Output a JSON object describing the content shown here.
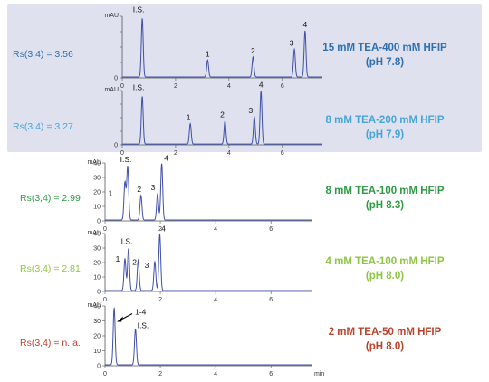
{
  "colors": {
    "panel_bg": "#dfe2ee",
    "trace": "#3f4fa8",
    "axis": "#555555",
    "cond_1": "#2f6fae",
    "cond_2": "#47a4d6",
    "cond_3": "#2f9a45",
    "cond_4": "#8fc544",
    "cond_5": "#b8432c"
  },
  "chart_data": [
    {
      "type": "line",
      "ylabel": "mAU",
      "ylim": [
        0,
        40
      ],
      "xlim": [
        0,
        7.5
      ],
      "x_ticks": [
        "0",
        "2",
        "4",
        "6"
      ],
      "y_ticks": [
        "0",
        "10",
        "20",
        "30",
        "40"
      ],
      "rs_label": "Rs(3,4) = 3.56",
      "condition": "15 mM TEA-400 mM HFIP",
      "ph": "(pH 7.8)",
      "color_key": "cond_1",
      "peaks": [
        {
          "label": "I.S.",
          "rt": 0.75,
          "height": 38
        },
        {
          "label": "1",
          "rt": 3.2,
          "height": 11
        },
        {
          "label": "2",
          "rt": 4.9,
          "height": 13
        },
        {
          "label": "3",
          "rt": 6.45,
          "height": 18
        },
        {
          "label": "4",
          "rt": 6.85,
          "height": 30
        }
      ]
    },
    {
      "type": "line",
      "ylabel": "mAU",
      "ylim": [
        0,
        40
      ],
      "xlim": [
        0,
        7.5
      ],
      "x_ticks": [
        "0",
        "2",
        "4",
        "6"
      ],
      "y_ticks": [
        "0",
        "10",
        "20",
        "30",
        "40"
      ],
      "rs_label": "Rs(3,4) = 3.27",
      "condition": "8 mM TEA-200 mM HFIP",
      "ph": "(pH 7.9)",
      "color_key": "cond_2",
      "peaks": [
        {
          "label": "I.S.",
          "rt": 0.75,
          "height": 35
        },
        {
          "label": "1",
          "rt": 2.55,
          "height": 15
        },
        {
          "label": "2",
          "rt": 3.85,
          "height": 17
        },
        {
          "label": "3",
          "rt": 4.95,
          "height": 20
        },
        {
          "label": "4",
          "rt": 5.2,
          "height": 39
        }
      ]
    },
    {
      "type": "line",
      "ylabel": "mAU",
      "ylim": [
        0,
        40
      ],
      "xlim": [
        0,
        7.5
      ],
      "x_ticks": [
        "0",
        "2",
        "4",
        "6"
      ],
      "y_ticks": [
        "0",
        "10",
        "20",
        "30",
        "40"
      ],
      "rs_label": "Rs(3,4) = 2.99",
      "condition": "8 mM TEA-100 mM HFIP",
      "ph": "(pH 8.3)",
      "color_key": "cond_3",
      "peaks": [
        {
          "label": "1",
          "rt": 0.72,
          "height": 26
        },
        {
          "label": "I.S.",
          "rt": 0.82,
          "height": 37
        },
        {
          "label": "2",
          "rt": 1.3,
          "height": 17
        },
        {
          "label": "3",
          "rt": 1.9,
          "height": 18
        },
        {
          "label": "4",
          "rt": 2.05,
          "height": 39
        }
      ]
    },
    {
      "type": "line",
      "ylabel": "mAU",
      "ylim": [
        0,
        40
      ],
      "xlim": [
        0,
        7.5
      ],
      "x_ticks": [
        "0",
        "2",
        "4",
        "6"
      ],
      "y_ticks": [
        "0",
        "10",
        "20",
        "30",
        "40"
      ],
      "rs_label": "Rs(3,4) = 2.81",
      "condition": "4 mM TEA-100 mM HFIP",
      "ph": "(pH 8.0)",
      "color_key": "cond_4",
      "peaks": [
        {
          "label": "1",
          "rt": 0.72,
          "height": 22
        },
        {
          "label": "I.S.",
          "rt": 0.85,
          "height": 29
        },
        {
          "label": "2",
          "rt": 1.2,
          "height": 21
        },
        {
          "label": "3",
          "rt": 1.8,
          "height": 20
        },
        {
          "label": "4",
          "rt": 1.98,
          "height": 39
        }
      ]
    },
    {
      "type": "line",
      "ylabel": "mAU",
      "xlabel": "min",
      "ylim": [
        0,
        40
      ],
      "xlim": [
        0,
        7.5
      ],
      "x_ticks": [
        "0",
        "2",
        "4",
        "6"
      ],
      "y_ticks": [
        "0",
        "10",
        "20",
        "30",
        "40"
      ],
      "rs_label": "Rs(3,4) = n. a.",
      "condition": "2 mM TEA-50 mM HFIP",
      "ph": "(pH 8.0)",
      "color_key": "cond_5",
      "peaks": [
        {
          "label": "1-4",
          "rt": 0.33,
          "height": 38
        },
        {
          "label": "I.S.",
          "rt": 1.1,
          "height": 24
        }
      ]
    }
  ]
}
